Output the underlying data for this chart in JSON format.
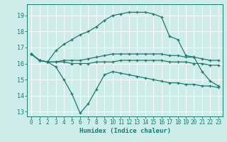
{
  "xlabel": "Humidex (Indice chaleur)",
  "background_color": "#ceecea",
  "grid_color": "#ffffff",
  "line_color": "#1a7a6e",
  "xlim": [
    -0.5,
    23.5
  ],
  "ylim": [
    12.7,
    19.7
  ],
  "yticks": [
    13,
    14,
    15,
    16,
    17,
    18,
    19
  ],
  "xticks": [
    0,
    1,
    2,
    3,
    4,
    5,
    6,
    7,
    8,
    9,
    10,
    11,
    12,
    13,
    14,
    15,
    16,
    17,
    18,
    19,
    20,
    21,
    22,
    23
  ],
  "series": [
    {
      "x": [
        0,
        1,
        2,
        3,
        4,
        5,
        6,
        7,
        8,
        9,
        10,
        11,
        12,
        13,
        14,
        15,
        16,
        17,
        18,
        19,
        20,
        21,
        22,
        23
      ],
      "y": [
        16.6,
        16.2,
        16.1,
        16.8,
        17.2,
        17.5,
        17.8,
        18.0,
        18.3,
        18.7,
        19.0,
        19.1,
        19.2,
        19.2,
        19.2,
        19.1,
        18.9,
        17.7,
        17.5,
        16.5,
        16.4,
        15.5,
        14.9,
        14.6
      ]
    },
    {
      "x": [
        0,
        1,
        2,
        3,
        4,
        5,
        6,
        7,
        8,
        9,
        10,
        11,
        12,
        13,
        14,
        15,
        16,
        17,
        18,
        19,
        20,
        21,
        22,
        23
      ],
      "y": [
        16.6,
        16.2,
        16.1,
        16.1,
        16.2,
        16.2,
        16.2,
        16.3,
        16.4,
        16.5,
        16.6,
        16.6,
        16.6,
        16.6,
        16.6,
        16.6,
        16.6,
        16.5,
        16.5,
        16.4,
        16.4,
        16.3,
        16.2,
        16.2
      ]
    },
    {
      "x": [
        0,
        1,
        2,
        3,
        4,
        5,
        6,
        7,
        8,
        9,
        10,
        11,
        12,
        13,
        14,
        15,
        16,
        17,
        18,
        19,
        20,
        21,
        22,
        23
      ],
      "y": [
        16.6,
        16.2,
        16.1,
        16.1,
        16.1,
        16.0,
        16.0,
        16.0,
        16.1,
        16.1,
        16.1,
        16.2,
        16.2,
        16.2,
        16.2,
        16.2,
        16.2,
        16.1,
        16.1,
        16.1,
        16.0,
        16.0,
        15.9,
        15.9
      ]
    },
    {
      "x": [
        0,
        1,
        2,
        3,
        4,
        5,
        6,
        7,
        8,
        9,
        10,
        11,
        12,
        13,
        14,
        15,
        16,
        17,
        18,
        19,
        20,
        21,
        22,
        23
      ],
      "y": [
        16.6,
        16.2,
        16.1,
        15.8,
        15.0,
        14.1,
        12.9,
        13.5,
        14.4,
        15.3,
        15.5,
        15.4,
        15.3,
        15.2,
        15.1,
        15.0,
        14.9,
        14.8,
        14.8,
        14.7,
        14.7,
        14.6,
        14.6,
        14.5
      ]
    }
  ]
}
